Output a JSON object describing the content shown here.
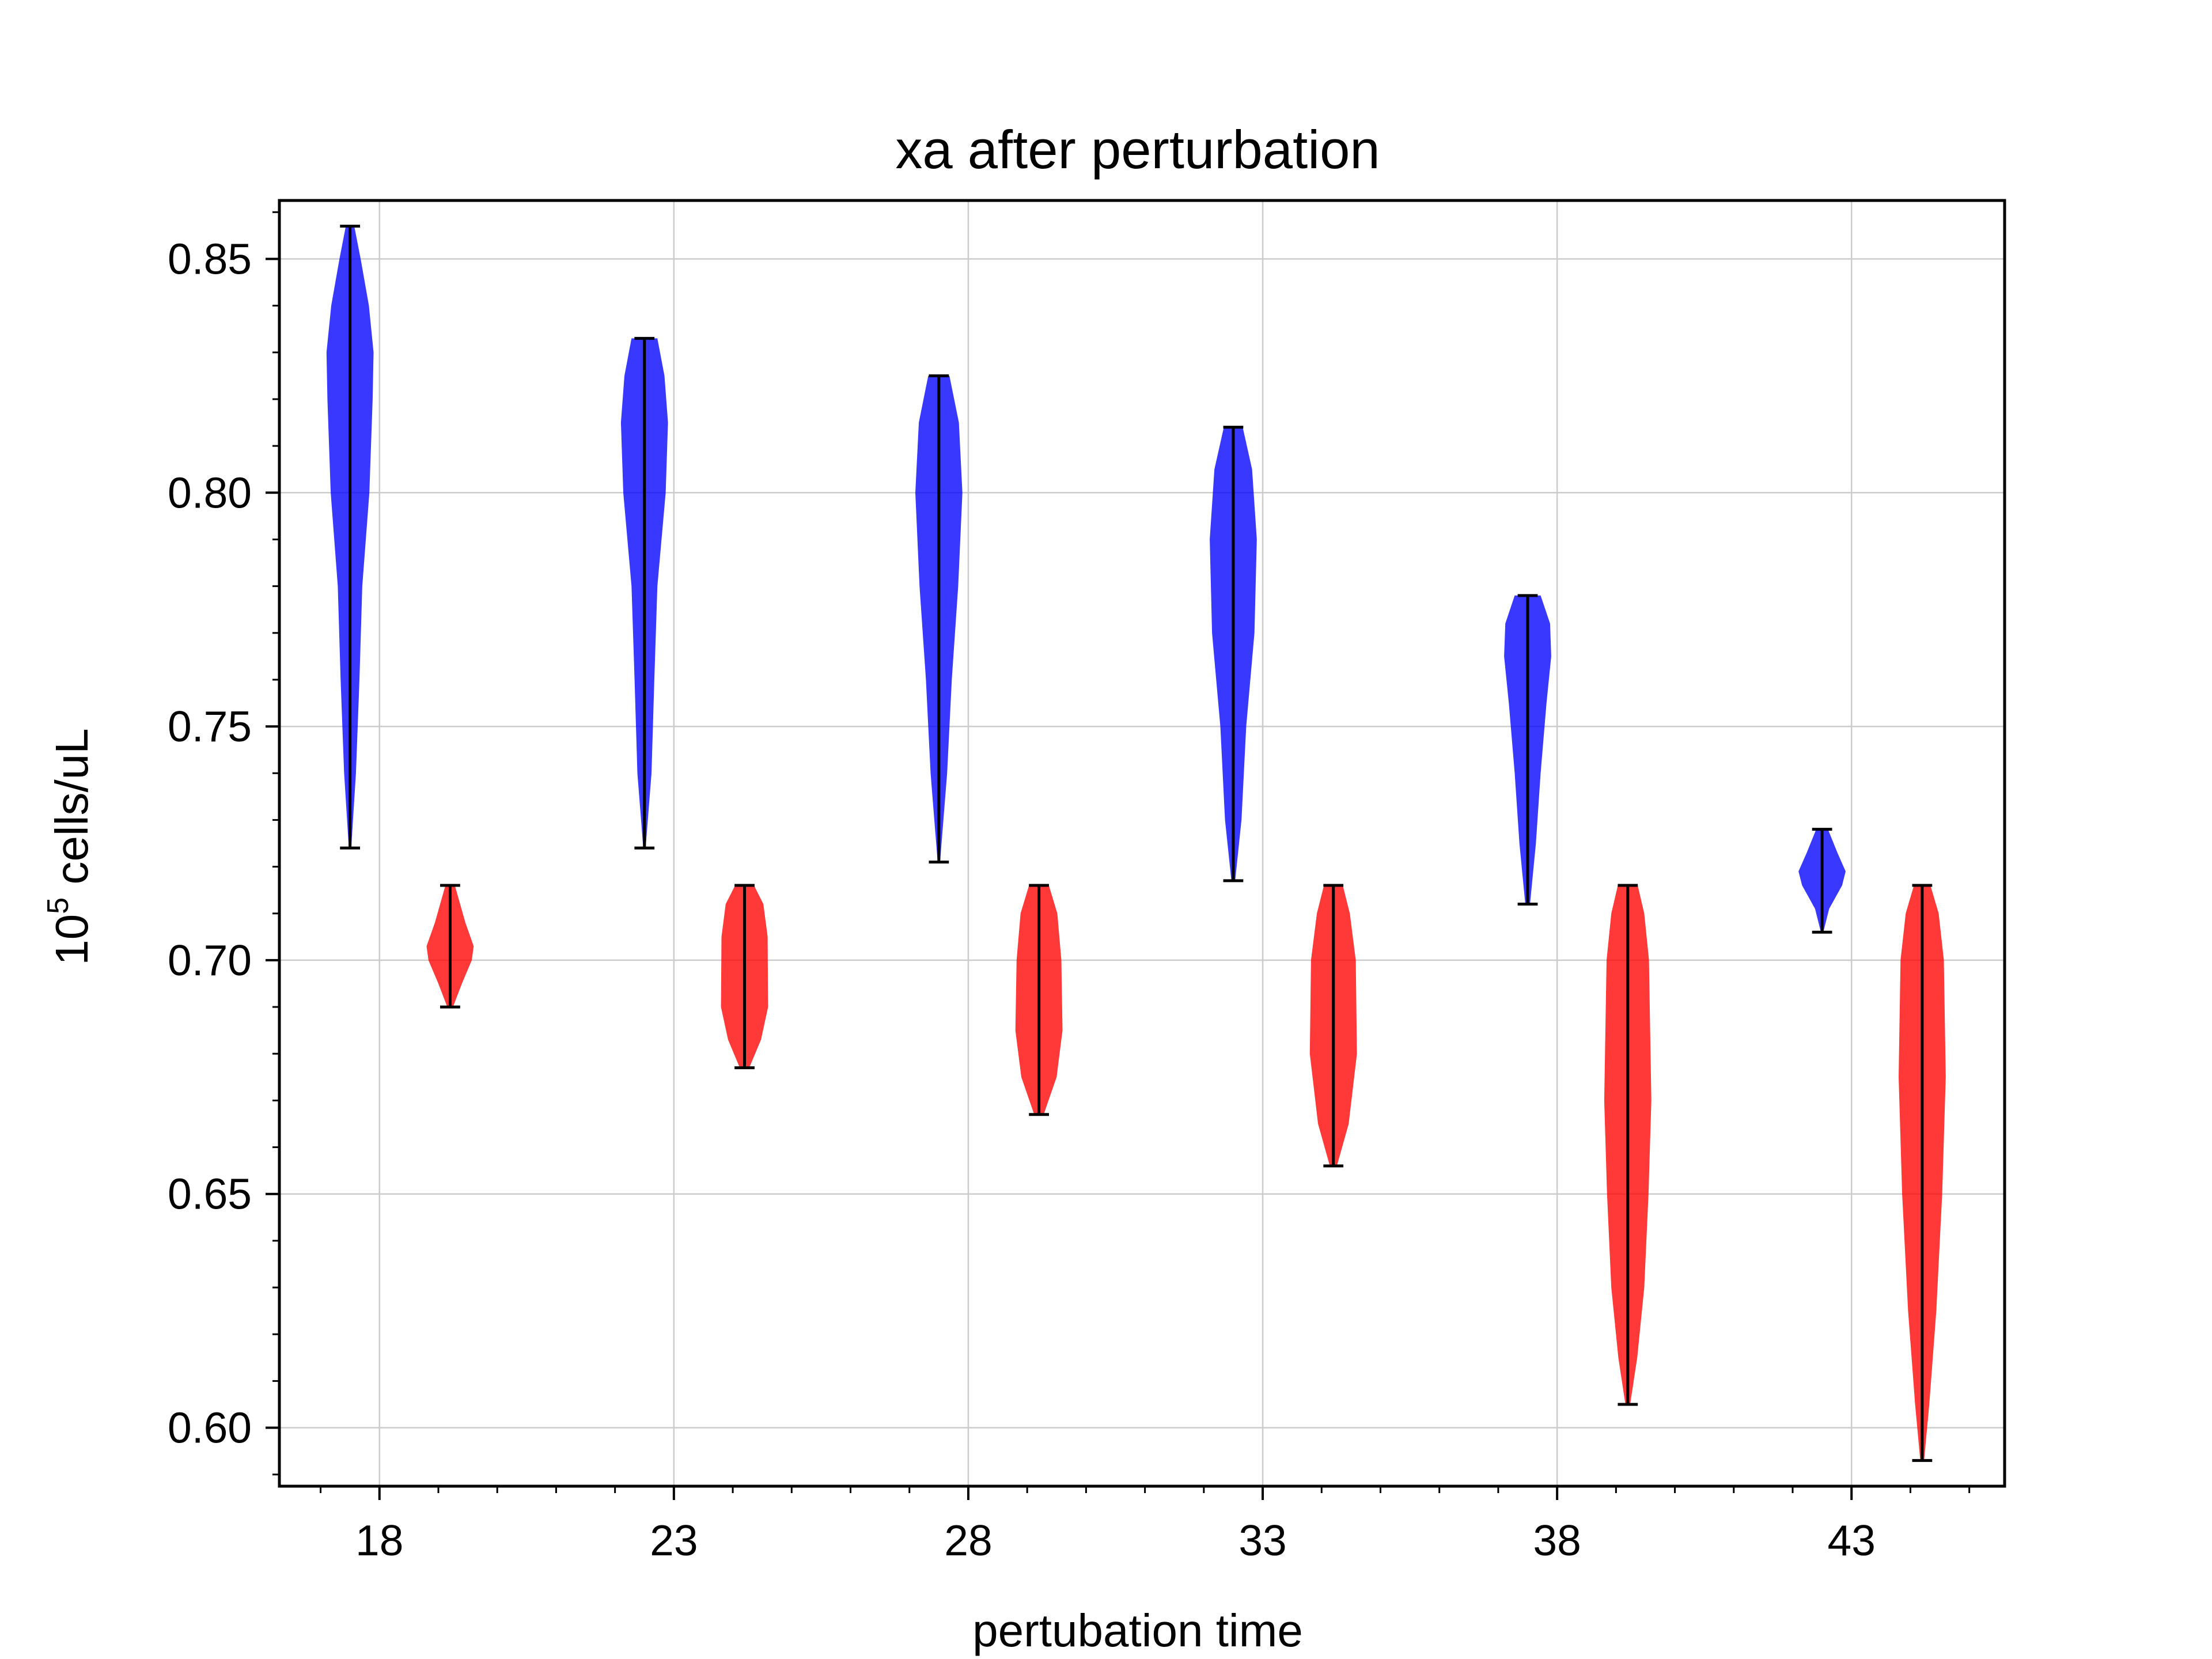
{
  "chart_data": {
    "type": "violin",
    "title": "xa after perturbation",
    "xlabel": "pertubation time",
    "ylabel_base": "10",
    "ylabel_exp": "5",
    "ylabel_rest": " cells/uL",
    "xlim": [
      16.3,
      45.6
    ],
    "ylim": [
      0.5875,
      0.8625
    ],
    "x_ticks": [
      18,
      23,
      28,
      33,
      38,
      43
    ],
    "x_tick_labels": [
      "18",
      "23",
      "28",
      "33",
      "38",
      "43"
    ],
    "y_ticks": [
      0.6,
      0.65,
      0.7,
      0.75,
      0.8,
      0.85
    ],
    "y_tick_labels": [
      "0.60",
      "0.65",
      "0.70",
      "0.75",
      "0.80",
      "0.85"
    ],
    "grid": true,
    "colors": {
      "blue": "#0000ff",
      "red": "#ff0000",
      "grid": "#cccccc",
      "axis": "#000000"
    },
    "series": [
      {
        "color": "blue",
        "violins": [
          {
            "x": 17.5,
            "min": 0.724,
            "max": 0.857,
            "half_width": 0.4,
            "shape": [
              [
                0.724,
                0.05
              ],
              [
                0.74,
                0.25
              ],
              [
                0.76,
                0.4
              ],
              [
                0.78,
                0.52
              ],
              [
                0.8,
                0.82
              ],
              [
                0.82,
                0.96
              ],
              [
                0.83,
                1.0
              ],
              [
                0.84,
                0.8
              ],
              [
                0.85,
                0.45
              ],
              [
                0.857,
                0.18
              ]
            ]
          },
          {
            "x": 22.5,
            "min": 0.724,
            "max": 0.833,
            "half_width": 0.4,
            "shape": [
              [
                0.724,
                0.05
              ],
              [
                0.74,
                0.3
              ],
              [
                0.76,
                0.42
              ],
              [
                0.78,
                0.55
              ],
              [
                0.8,
                0.9
              ],
              [
                0.815,
                1.0
              ],
              [
                0.825,
                0.85
              ],
              [
                0.833,
                0.55
              ]
            ]
          },
          {
            "x": 27.5,
            "min": 0.721,
            "max": 0.825,
            "half_width": 0.4,
            "shape": [
              [
                0.721,
                0.05
              ],
              [
                0.74,
                0.35
              ],
              [
                0.76,
                0.55
              ],
              [
                0.78,
                0.82
              ],
              [
                0.8,
                1.0
              ],
              [
                0.815,
                0.85
              ],
              [
                0.825,
                0.45
              ]
            ]
          },
          {
            "x": 32.5,
            "min": 0.717,
            "max": 0.814,
            "half_width": 0.4,
            "shape": [
              [
                0.717,
                0.08
              ],
              [
                0.73,
                0.35
              ],
              [
                0.75,
                0.55
              ],
              [
                0.77,
                0.9
              ],
              [
                0.79,
                1.0
              ],
              [
                0.805,
                0.8
              ],
              [
                0.814,
                0.4
              ]
            ]
          },
          {
            "x": 37.5,
            "min": 0.712,
            "max": 0.778,
            "half_width": 0.4,
            "shape": [
              [
                0.712,
                0.1
              ],
              [
                0.725,
                0.35
              ],
              [
                0.74,
                0.55
              ],
              [
                0.755,
                0.8
              ],
              [
                0.765,
                1.0
              ],
              [
                0.772,
                0.95
              ],
              [
                0.778,
                0.55
              ]
            ]
          },
          {
            "x": 42.5,
            "min": 0.706,
            "max": 0.728,
            "half_width": 0.4,
            "shape": [
              [
                0.706,
                0.05
              ],
              [
                0.711,
                0.3
              ],
              [
                0.716,
                0.85
              ],
              [
                0.719,
                1.0
              ],
              [
                0.723,
                0.65
              ],
              [
                0.728,
                0.25
              ]
            ]
          }
        ]
      },
      {
        "color": "red",
        "violins": [
          {
            "x": 19.2,
            "min": 0.69,
            "max": 0.716,
            "half_width": 0.4,
            "shape": [
              [
                0.69,
                0.12
              ],
              [
                0.695,
                0.5
              ],
              [
                0.7,
                0.92
              ],
              [
                0.703,
                1.0
              ],
              [
                0.708,
                0.65
              ],
              [
                0.716,
                0.2
              ]
            ]
          },
          {
            "x": 24.2,
            "min": 0.677,
            "max": 0.716,
            "half_width": 0.4,
            "shape": [
              [
                0.677,
                0.2
              ],
              [
                0.683,
                0.7
              ],
              [
                0.69,
                1.0
              ],
              [
                0.705,
                0.98
              ],
              [
                0.712,
                0.8
              ],
              [
                0.716,
                0.4
              ]
            ]
          },
          {
            "x": 29.2,
            "min": 0.667,
            "max": 0.716,
            "half_width": 0.4,
            "shape": [
              [
                0.667,
                0.2
              ],
              [
                0.675,
                0.75
              ],
              [
                0.685,
                1.0
              ],
              [
                0.7,
                0.95
              ],
              [
                0.71,
                0.78
              ],
              [
                0.716,
                0.42
              ]
            ]
          },
          {
            "x": 34.2,
            "min": 0.656,
            "max": 0.716,
            "half_width": 0.4,
            "shape": [
              [
                0.656,
                0.15
              ],
              [
                0.665,
                0.65
              ],
              [
                0.68,
                1.0
              ],
              [
                0.7,
                0.95
              ],
              [
                0.71,
                0.7
              ],
              [
                0.716,
                0.4
              ]
            ]
          },
          {
            "x": 39.2,
            "min": 0.605,
            "max": 0.716,
            "half_width": 0.4,
            "shape": [
              [
                0.605,
                0.1
              ],
              [
                0.615,
                0.4
              ],
              [
                0.63,
                0.7
              ],
              [
                0.65,
                0.88
              ],
              [
                0.67,
                1.0
              ],
              [
                0.7,
                0.9
              ],
              [
                0.71,
                0.7
              ],
              [
                0.716,
                0.42
              ]
            ]
          },
          {
            "x": 44.2,
            "min": 0.593,
            "max": 0.716,
            "half_width": 0.4,
            "shape": [
              [
                0.593,
                0.08
              ],
              [
                0.605,
                0.3
              ],
              [
                0.625,
                0.6
              ],
              [
                0.65,
                0.85
              ],
              [
                0.675,
                1.0
              ],
              [
                0.7,
                0.92
              ],
              [
                0.71,
                0.7
              ],
              [
                0.716,
                0.35
              ]
            ]
          }
        ]
      }
    ]
  }
}
